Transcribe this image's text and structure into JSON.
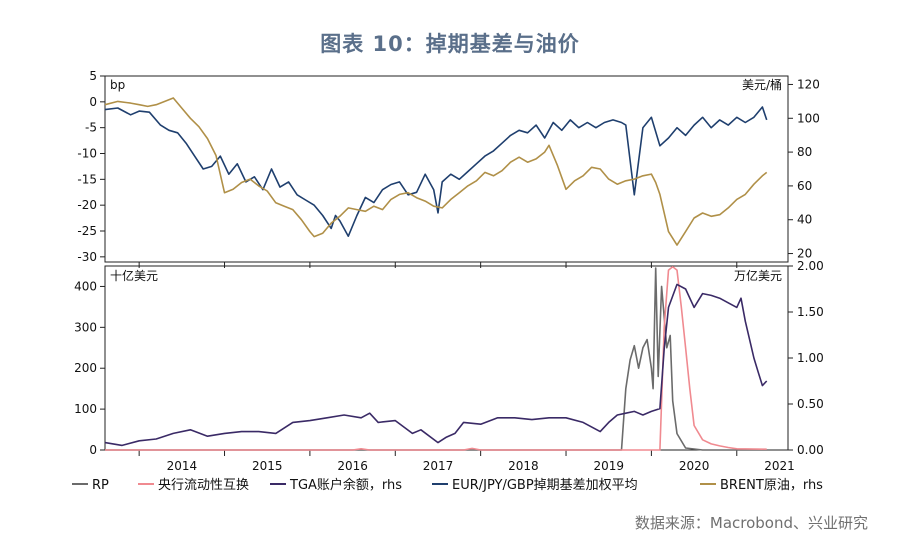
{
  "title": "图表 10：掉期基差与油价",
  "source": "数据来源：Macrobond、兴业研究",
  "colors": {
    "rp": "#6b6b6b",
    "cb_swap": "#f08a90",
    "tga": "#3a2a66",
    "basis": "#1f3f6e",
    "brent": "#b09048"
  },
  "chart_data": [
    {
      "type": "line",
      "top_left_unit": "bp",
      "top_right_unit": "美元/桶",
      "y_left_ticks": [
        "5",
        "0",
        "-5",
        "-10",
        "-15",
        "-20",
        "-25",
        "-30"
      ],
      "y_right_ticks": [
        "120",
        "100",
        "80",
        "60",
        "40",
        "20"
      ],
      "ylim_left": [
        -31,
        5
      ],
      "ylim_right": [
        15,
        125
      ],
      "xlim": [
        2013.6,
        2021.6
      ],
      "series": [
        {
          "key": "basis",
          "name": "EUR/JPY/GBP掉期基差加权平均",
          "axis": "left",
          "x": [
            2013.6,
            2013.75,
            2013.9,
            2014.0,
            2014.12,
            2014.25,
            2014.35,
            2014.45,
            2014.55,
            2014.65,
            2014.75,
            2014.85,
            2014.95,
            2015.05,
            2015.15,
            2015.25,
            2015.35,
            2015.45,
            2015.55,
            2015.65,
            2015.75,
            2015.85,
            2015.95,
            2016.05,
            2016.15,
            2016.25,
            2016.3,
            2016.35,
            2016.45,
            2016.55,
            2016.65,
            2016.75,
            2016.85,
            2016.95,
            2017.05,
            2017.15,
            2017.25,
            2017.35,
            2017.45,
            2017.5,
            2017.55,
            2017.65,
            2017.75,
            2017.85,
            2017.95,
            2018.05,
            2018.15,
            2018.25,
            2018.35,
            2018.45,
            2018.55,
            2018.65,
            2018.75,
            2018.85,
            2018.95,
            2019.05,
            2019.15,
            2019.25,
            2019.35,
            2019.45,
            2019.55,
            2019.65,
            2019.7,
            2019.8,
            2019.9,
            2020.0,
            2020.1,
            2020.2,
            2020.3,
            2020.4,
            2020.5,
            2020.6,
            2020.7,
            2020.8,
            2020.9,
            2021.0,
            2021.1,
            2021.2,
            2021.3,
            2021.35
          ],
          "y": [
            -1.5,
            -1.2,
            -2.5,
            -1.8,
            -2.0,
            -4.5,
            -5.5,
            -6.0,
            -8.0,
            -10.5,
            -13.0,
            -12.5,
            -10.5,
            -14.0,
            -12.0,
            -15.5,
            -14.5,
            -17.0,
            -13.0,
            -16.5,
            -15.5,
            -18.0,
            -19.0,
            -20.0,
            -22.0,
            -24.5,
            -22.0,
            -23.0,
            -26.0,
            -22.0,
            -18.5,
            -19.5,
            -17.0,
            -16.0,
            -15.5,
            -18.0,
            -17.5,
            -14.0,
            -17.0,
            -21.5,
            -15.5,
            -14.0,
            -15.0,
            -13.5,
            -12.0,
            -10.5,
            -9.5,
            -8.0,
            -6.5,
            -5.5,
            -6.0,
            -4.5,
            -7.0,
            -4.0,
            -5.5,
            -3.5,
            -5.0,
            -4.0,
            -5.0,
            -4.0,
            -3.5,
            -4.0,
            -4.5,
            -18.0,
            -5.0,
            -3.0,
            -8.5,
            -7.0,
            -5.0,
            -6.5,
            -4.5,
            -3.0,
            -5.0,
            -3.5,
            -4.5,
            -3.0,
            -4.0,
            -3.0,
            -1.0,
            -3.5
          ]
        },
        {
          "key": "brent",
          "name": "BRENT原油，rhs",
          "axis": "right",
          "x": [
            2013.6,
            2013.75,
            2013.9,
            2014.0,
            2014.1,
            2014.2,
            2014.3,
            2014.4,
            2014.5,
            2014.6,
            2014.7,
            2014.8,
            2014.9,
            2015.0,
            2015.1,
            2015.2,
            2015.3,
            2015.4,
            2015.5,
            2015.6,
            2015.7,
            2015.8,
            2015.9,
            2016.0,
            2016.05,
            2016.15,
            2016.25,
            2016.35,
            2016.45,
            2016.55,
            2016.65,
            2016.75,
            2016.85,
            2016.95,
            2017.05,
            2017.15,
            2017.25,
            2017.35,
            2017.45,
            2017.55,
            2017.65,
            2017.75,
            2017.85,
            2017.95,
            2018.05,
            2018.15,
            2018.25,
            2018.35,
            2018.45,
            2018.55,
            2018.65,
            2018.75,
            2018.8,
            2018.9,
            2019.0,
            2019.1,
            2019.2,
            2019.3,
            2019.4,
            2019.5,
            2019.6,
            2019.7,
            2019.8,
            2019.9,
            2020.0,
            2020.05,
            2020.1,
            2020.2,
            2020.3,
            2020.4,
            2020.5,
            2020.6,
            2020.7,
            2020.8,
            2020.9,
            2021.0,
            2021.1,
            2021.2,
            2021.3,
            2021.35
          ],
          "y": [
            108,
            110,
            109,
            108,
            107,
            108,
            110,
            112,
            106,
            100,
            95,
            88,
            78,
            56,
            58,
            62,
            64,
            60,
            57,
            50,
            48,
            46,
            40,
            33,
            30,
            32,
            38,
            42,
            47,
            46,
            45,
            48,
            46,
            52,
            55,
            56,
            53,
            51,
            48,
            47,
            52,
            56,
            60,
            63,
            68,
            66,
            69,
            74,
            77,
            74,
            76,
            80,
            84,
            72,
            58,
            63,
            66,
            71,
            70,
            64,
            61,
            63,
            64,
            66,
            67,
            62,
            55,
            33,
            25,
            33,
            41,
            44,
            42,
            43,
            47,
            52,
            55,
            61,
            66,
            68
          ]
        }
      ]
    },
    {
      "type": "line",
      "top_left_unit": "十亿美元",
      "top_right_unit": "万亿美元",
      "y_left_ticks": [
        "400",
        "300",
        "200",
        "100",
        "0"
      ],
      "y_right_ticks": [
        "2.00",
        "1.50",
        "1.00",
        "0.50",
        "0.00"
      ],
      "ylim_left": [
        0,
        450
      ],
      "ylim_right": [
        0,
        2.0
      ],
      "xlim": [
        2013.6,
        2021.6
      ],
      "x_ticks": [
        "2014",
        "2015",
        "2016",
        "2017",
        "2018",
        "2019",
        "2020",
        "2021"
      ],
      "series": [
        {
          "key": "rp",
          "name": "RP",
          "axis": "left",
          "x": [
            2013.6,
            2019.65,
            2019.7,
            2019.75,
            2019.8,
            2019.85,
            2019.9,
            2019.95,
            2020.0,
            2020.02,
            2020.05,
            2020.08,
            2020.12,
            2020.18,
            2020.22,
            2020.25,
            2020.3,
            2020.4,
            2020.6,
            2021.35
          ],
          "y": [
            0,
            0,
            150,
            220,
            255,
            200,
            250,
            270,
            200,
            150,
            445,
            180,
            400,
            250,
            280,
            120,
            40,
            5,
            0,
            0
          ]
        },
        {
          "key": "cb_swap",
          "name": "央行流动性互换",
          "axis": "left",
          "x": [
            2013.6,
            2016.5,
            2016.6,
            2016.7,
            2017.8,
            2017.9,
            2018.0,
            2020.1,
            2020.15,
            2020.2,
            2020.25,
            2020.3,
            2020.35,
            2020.4,
            2020.45,
            2020.5,
            2020.6,
            2020.7,
            2020.8,
            2020.9,
            2021.0,
            2021.35
          ],
          "y": [
            0,
            0,
            3,
            0,
            0,
            4,
            0,
            0,
            300,
            440,
            448,
            440,
            350,
            250,
            150,
            60,
            25,
            15,
            10,
            6,
            3,
            2
          ]
        },
        {
          "key": "tga",
          "name": "TGA账户余额，rhs",
          "axis": "right",
          "x": [
            2013.6,
            2013.8,
            2014.0,
            2014.2,
            2014.4,
            2014.6,
            2014.8,
            2015.0,
            2015.2,
            2015.4,
            2015.6,
            2015.8,
            2016.0,
            2016.2,
            2016.4,
            2016.6,
            2016.7,
            2016.8,
            2017.0,
            2017.2,
            2017.3,
            2017.5,
            2017.6,
            2017.7,
            2017.8,
            2018.0,
            2018.2,
            2018.4,
            2018.6,
            2018.8,
            2019.0,
            2019.2,
            2019.4,
            2019.5,
            2019.6,
            2019.7,
            2019.8,
            2019.9,
            2020.0,
            2020.1,
            2020.15,
            2020.2,
            2020.3,
            2020.4,
            2020.5,
            2020.6,
            2020.7,
            2020.8,
            2020.9,
            2021.0,
            2021.05,
            2021.1,
            2021.15,
            2021.2,
            2021.25,
            2021.3,
            2021.35
          ],
          "y": [
            0.08,
            0.05,
            0.1,
            0.12,
            0.18,
            0.22,
            0.15,
            0.18,
            0.2,
            0.2,
            0.18,
            0.3,
            0.32,
            0.35,
            0.38,
            0.35,
            0.4,
            0.3,
            0.32,
            0.18,
            0.22,
            0.08,
            0.14,
            0.18,
            0.3,
            0.28,
            0.35,
            0.35,
            0.33,
            0.35,
            0.35,
            0.3,
            0.2,
            0.3,
            0.38,
            0.4,
            0.42,
            0.38,
            0.42,
            0.45,
            1.1,
            1.55,
            1.8,
            1.75,
            1.55,
            1.7,
            1.68,
            1.65,
            1.6,
            1.55,
            1.65,
            1.4,
            1.2,
            1.0,
            0.85,
            0.7,
            0.75
          ]
        }
      ]
    }
  ],
  "legend": [
    {
      "key": "rp",
      "label": "RP"
    },
    {
      "key": "cb_swap",
      "label": "央行流动性互换"
    },
    {
      "key": "tga",
      "label": "TGA账户余额，rhs"
    },
    {
      "key": "basis",
      "label": "EUR/JPY/GBP掉期基差加权平均"
    },
    {
      "key": "brent",
      "label": "BRENT原油，rhs"
    }
  ]
}
